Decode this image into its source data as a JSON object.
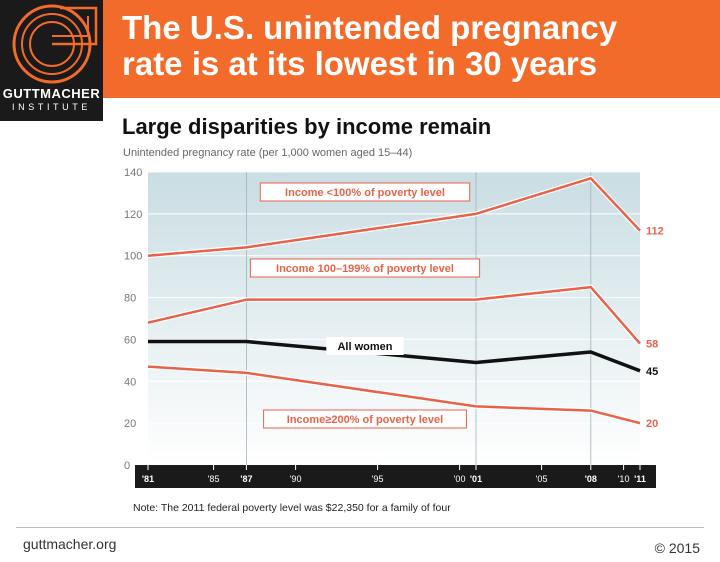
{
  "header": {
    "title_line1": "The U.S. unintended pregnancy",
    "title_line2": "rate is at its lowest in 30 years",
    "logo_name": "GUTTMACHER",
    "logo_sub": "INSTITUTE",
    "accent_color": "#f26b2a"
  },
  "subtitle": "Large disparities by income remain",
  "note": "Note: The 2011 federal poverty level was $22,350 for a family of four",
  "footer": {
    "website": "guttmacher.org",
    "copyright": "© 2015"
  },
  "chart_data": {
    "type": "line",
    "ylabel": "Unintended pregnancy rate (per 1,000 women aged  15–44)",
    "ylim": [
      0,
      140
    ],
    "yticks": [
      0,
      20,
      40,
      60,
      80,
      100,
      120,
      140
    ],
    "xlim": [
      1981,
      2011
    ],
    "xticks": [
      {
        "value": 1981,
        "label": "'81",
        "bold": true
      },
      {
        "value": 1985,
        "label": "'85",
        "bold": false
      },
      {
        "value": 1987,
        "label": "'87",
        "bold": true
      },
      {
        "value": 1990,
        "label": "'90",
        "bold": false
      },
      {
        "value": 1995,
        "label": "'95",
        "bold": false
      },
      {
        "value": 2000,
        "label": "'00",
        "bold": false
      },
      {
        "value": 2001,
        "label": "'01",
        "bold": true
      },
      {
        "value": 2005,
        "label": "'05",
        "bold": false
      },
      {
        "value": 2008,
        "label": "'08",
        "bold": true
      },
      {
        "value": 2010,
        "label": "'10",
        "bold": false
      },
      {
        "value": 2011,
        "label": "'11",
        "bold": true
      }
    ],
    "grid": true,
    "series": [
      {
        "name": "Income <100% of poverty level",
        "color": "#e8624a",
        "x": [
          1981,
          1987,
          2001,
          2008,
          2011
        ],
        "values": [
          100,
          104,
          120,
          137,
          112
        ],
        "end_label": "112"
      },
      {
        "name": "Income 100–199% of poverty level",
        "color": "#e8624a",
        "x": [
          1981,
          1987,
          2001,
          2008,
          2011
        ],
        "values": [
          68,
          79,
          79,
          85,
          58
        ],
        "end_label": "58"
      },
      {
        "name": "All women",
        "color": "#111111",
        "x": [
          1981,
          1987,
          2001,
          2008,
          2011
        ],
        "values": [
          59,
          59,
          49,
          54,
          45
        ],
        "end_label": "45"
      },
      {
        "name": "Income≥200% of poverty level",
        "color": "#e8624a",
        "x": [
          1981,
          1987,
          2001,
          2008,
          2011
        ],
        "values": [
          47,
          44,
          28,
          26,
          20
        ],
        "end_label": "20"
      }
    ]
  }
}
